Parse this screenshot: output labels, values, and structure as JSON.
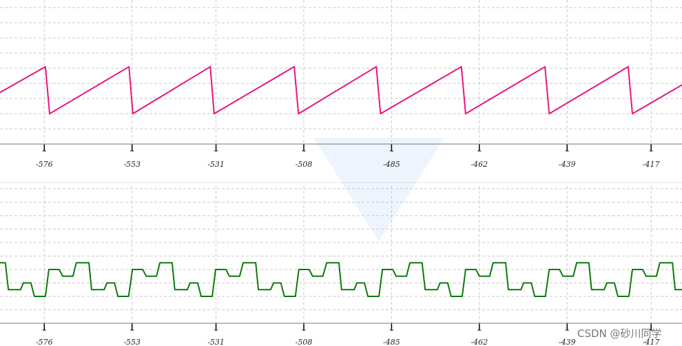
{
  "chart_data": [
    {
      "type": "line",
      "color": "#e8157f",
      "x": [
        -587.6,
        -575.7,
        -574.6,
        -553.8,
        -552.8,
        -532.5,
        -531.5,
        -510.5,
        -509.4,
        -489.0,
        -487.9,
        -466.7,
        -465.6,
        -444.8,
        -443.7,
        -423.0,
        -421.9,
        -408.9
      ],
      "values": [
        3.4,
        5.1,
        2,
        5.1,
        2,
        5.1,
        2,
        5.1,
        2,
        5.1,
        2,
        5.1,
        2,
        5.1,
        2,
        5.1,
        2,
        3.9
      ],
      "xlim": [
        -587.6,
        -408.9
      ],
      "xticks": [
        -576,
        -553,
        -531,
        -508,
        -485,
        -462,
        -439,
        -417
      ],
      "ylim": [
        0,
        9.5
      ],
      "yticks": [
        1,
        2,
        3,
        4,
        5,
        6,
        7,
        8,
        9
      ],
      "grid": true
    },
    {
      "type": "line",
      "color": "#0a7a0a",
      "x": [
        -587.6,
        -586.2,
        -585.4,
        -582.2,
        -581.5,
        -579.5,
        -578.6,
        -575.7,
        -574.8,
        -572.1,
        -571.2,
        -568.5,
        -567.6,
        -564.3,
        -563.6,
        -560.3,
        -559.6,
        -557.6,
        -556.7,
        -553.9,
        -552.9,
        -550.2,
        -549.3,
        -546.6,
        -545.7,
        -542.5,
        -541.8,
        -538.5,
        -537.8,
        -535.8,
        -534.9,
        -532.0,
        -531.1,
        -528.4,
        -527.5,
        -524.8,
        -523.9,
        -520.6,
        -519.9,
        -516.7,
        -515.9,
        -514.0,
        -513.1,
        -510.2,
        -509.3,
        -506.6,
        -505.7,
        -503.0,
        -502.0,
        -498.8,
        -498.1,
        -494.8,
        -494.1,
        -492.1,
        -491.2,
        -488.3,
        -487.4,
        -484.7,
        -483.8,
        -481.1,
        -480.2,
        -477.0,
        -476.2,
        -473.0,
        -472.3,
        -470.3,
        -469.4,
        -466.5,
        -465.6,
        -462.9,
        -462.0,
        -459.3,
        -458.4,
        -455.1,
        -454.4,
        -451.1,
        -450.4,
        -448.4,
        -447.5,
        -444.7,
        -443.7,
        -441.0,
        -440.1,
        -437.4,
        -436.5,
        -433.3,
        -432.6,
        -429.3,
        -428.6,
        -426.6,
        -425.7,
        -422.8,
        -421.9,
        -419.2,
        -418.3,
        -415.6,
        -414.7,
        -411.4,
        -410.7,
        -408.9
      ],
      "values": [
        4.5,
        4.5,
        2.5,
        2.5,
        3,
        3,
        2,
        2,
        4,
        4,
        3.5,
        3.5,
        4.5,
        4.5,
        2.5,
        2.5,
        3,
        3,
        2,
        2,
        4,
        4,
        3.5,
        3.5,
        4.5,
        4.5,
        2.5,
        2.5,
        3,
        3,
        2,
        2,
        4,
        4,
        3.5,
        3.5,
        4.5,
        4.5,
        2.5,
        2.5,
        3,
        3,
        2,
        2,
        4,
        4,
        3.5,
        3.5,
        4.5,
        4.5,
        2.5,
        2.5,
        3,
        3,
        2,
        2,
        4,
        4,
        3.5,
        3.5,
        4.5,
        4.5,
        2.5,
        2.5,
        3,
        3,
        2,
        2,
        4,
        4,
        3.5,
        3.5,
        4.5,
        4.5,
        2.5,
        2.5,
        3,
        3,
        2,
        2,
        4,
        4,
        3.5,
        3.5,
        4.5,
        4.5,
        2.5,
        2.5,
        3,
        3,
        2,
        2,
        4,
        4,
        3.5,
        3.5,
        4.5,
        4.5,
        2.5,
        2.5
      ],
      "xlim": [
        -587.6,
        -408.9
      ],
      "xticks": [
        -576,
        -553,
        -531,
        -508,
        -485,
        -462,
        -439,
        -417
      ],
      "ylim": [
        0,
        10.2
      ],
      "yticks": [
        1,
        2,
        3,
        4,
        5,
        6,
        7,
        8,
        9,
        10
      ],
      "grid": true
    }
  ],
  "watermark": "CSDN @砂川同学"
}
